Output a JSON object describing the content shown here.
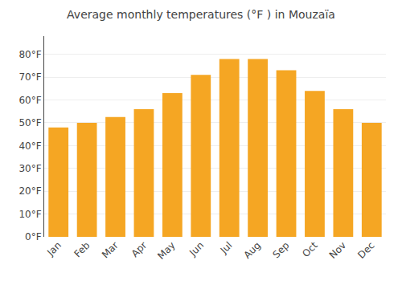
{
  "chart_data": {
    "type": "bar",
    "title": "Average monthly temperatures (°F ) in Mouzaïa",
    "categories": [
      "Jan",
      "Feb",
      "Mar",
      "Apr",
      "May",
      "Jun",
      "Jul",
      "Aug",
      "Sep",
      "Oct",
      "Nov",
      "Dec"
    ],
    "values": [
      48,
      50,
      52.5,
      56,
      63,
      71,
      78,
      78,
      73,
      64,
      56,
      50
    ],
    "color": "#F5A623",
    "ylim": [
      0,
      88
    ],
    "yticks": [
      {
        "value": 0,
        "label": "0°F"
      },
      {
        "value": 10,
        "label": "10°F"
      },
      {
        "value": 20,
        "label": "20°F"
      },
      {
        "value": 30,
        "label": "30°F"
      },
      {
        "value": 40,
        "label": "40°F"
      },
      {
        "value": 50,
        "label": "50°F"
      },
      {
        "value": 60,
        "label": "60°F"
      },
      {
        "value": 70,
        "label": "70°F"
      },
      {
        "value": 80,
        "label": "80°F"
      }
    ],
    "grid": true
  }
}
